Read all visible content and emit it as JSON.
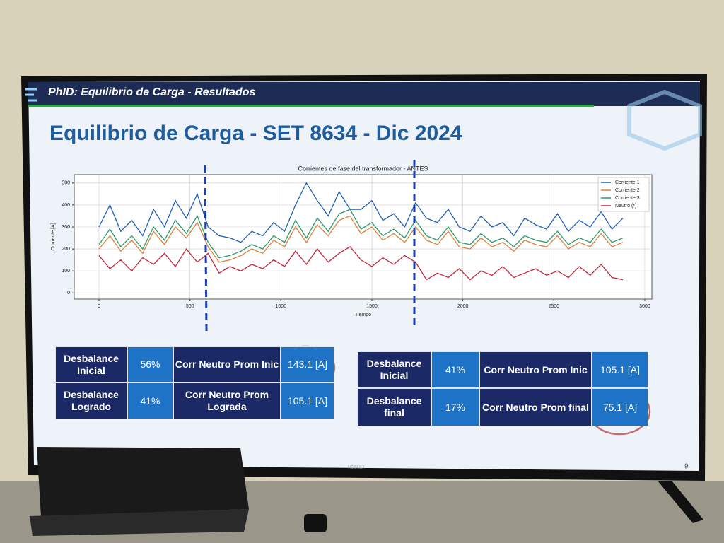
{
  "header": {
    "title": "PhID: Equilibrio de Carga - Resultados"
  },
  "slide": {
    "title": "Equilibrio de Carga - SET 8634 - Dic 2024",
    "page_number": "9"
  },
  "chart": {
    "type": "line",
    "title": "Corrientes de fase del transformador - ANTES",
    "x_label": "Tiempo",
    "y_label": "Corriente [A]",
    "x": [
      0,
      60,
      120,
      180,
      240,
      300,
      360,
      420,
      480,
      540,
      600,
      660,
      720,
      780,
      840,
      900,
      960,
      1020,
      1080,
      1140,
      1200,
      1260,
      1320,
      1380,
      1440,
      1500,
      1560,
      1620,
      1680,
      1740,
      1800,
      1860,
      1920,
      1980,
      2040,
      2100,
      2160,
      2220,
      2280,
      2340,
      2400,
      2460,
      2520,
      2580,
      2640,
      2700,
      2760,
      2820,
      2880
    ],
    "series": [
      {
        "name": "Corriente 1",
        "color": "#1f5fb4",
        "values": [
          300,
          400,
          280,
          330,
          260,
          380,
          300,
          420,
          340,
          450,
          300,
          260,
          250,
          230,
          280,
          260,
          320,
          280,
          400,
          500,
          420,
          350,
          460,
          380,
          380,
          420,
          330,
          360,
          300,
          410,
          340,
          320,
          380,
          300,
          280,
          350,
          300,
          320,
          260,
          340,
          310,
          290,
          360,
          280,
          330,
          300,
          370,
          290,
          340
        ]
      },
      {
        "name": "Corriente 2",
        "color": "#d9823a",
        "values": [
          200,
          260,
          190,
          240,
          180,
          280,
          220,
          300,
          250,
          320,
          210,
          140,
          150,
          170,
          200,
          180,
          240,
          210,
          300,
          230,
          310,
          260,
          330,
          350,
          270,
          300,
          240,
          270,
          230,
          300,
          240,
          220,
          280,
          210,
          200,
          250,
          210,
          230,
          190,
          240,
          220,
          210,
          260,
          200,
          230,
          210,
          270,
          210,
          230
        ]
      },
      {
        "name": "Corriente 3",
        "color": "#2a9a6a",
        "values": [
          220,
          290,
          210,
          260,
          200,
          300,
          240,
          330,
          270,
          350,
          230,
          160,
          170,
          190,
          220,
          200,
          260,
          230,
          330,
          250,
          340,
          280,
          360,
          380,
          290,
          320,
          260,
          290,
          250,
          330,
          260,
          240,
          300,
          230,
          220,
          270,
          230,
          250,
          210,
          260,
          240,
          230,
          280,
          220,
          250,
          230,
          290,
          230,
          250
        ]
      },
      {
        "name": "Neutro (*)",
        "color": "#c0283a",
        "values": [
          170,
          110,
          150,
          100,
          160,
          130,
          180,
          120,
          200,
          140,
          180,
          90,
          120,
          100,
          130,
          110,
          150,
          120,
          190,
          130,
          200,
          140,
          180,
          210,
          150,
          120,
          160,
          130,
          170,
          140,
          60,
          90,
          70,
          110,
          60,
          100,
          80,
          120,
          70,
          90,
          110,
          80,
          100,
          70,
          120,
          80,
          130,
          70,
          60
        ]
      }
    ],
    "xlim": [
      -136,
      3039
    ],
    "ylim": [
      -28,
      538
    ],
    "xticks": [
      0,
      500,
      1000,
      1500,
      2000,
      2500,
      3000
    ],
    "yticks": [
      0,
      100,
      200,
      300,
      400,
      500
    ],
    "grid": true,
    "legend": "upper-right"
  },
  "tables": [
    {
      "rows": [
        [
          "Desbalance Inicial",
          "56%",
          "Corr Neutro Prom Inic",
          "143.1 [A]"
        ],
        [
          "Desbalance Logrado",
          "41%",
          "Corr Neutro Prom Lograda",
          "105.1 [A]"
        ]
      ]
    },
    {
      "rows": [
        [
          "Desbalance Inicial",
          "41%",
          "Corr Neutro Prom Inic",
          "105.1 [A]"
        ],
        [
          "Desbalance final",
          "17%",
          "Corr Neutro Prom final",
          "75.1 [A]"
        ]
      ]
    }
  ],
  "tv": {
    "brand": "NOBLEX"
  }
}
